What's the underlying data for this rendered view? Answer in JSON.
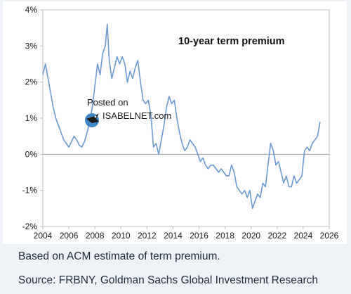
{
  "chart_data": {
    "type": "line",
    "title": "10-year term premium",
    "xlabel": "",
    "ylabel": "",
    "xlim": [
      2004,
      2026
    ],
    "ylim": [
      -2,
      4
    ],
    "x_ticks": [
      "2004",
      "2006",
      "2008",
      "2010",
      "2012",
      "2014",
      "2016",
      "2018",
      "2020",
      "2022",
      "2024",
      "2026"
    ],
    "y_ticks": [
      "-2%",
      "-1%",
      "0%",
      "1%",
      "2%",
      "3%",
      "4%"
    ],
    "grid": false,
    "legend": "none",
    "line_color": "#6c9bd2",
    "zero_line_color": "#9a9a9a",
    "series": [
      {
        "x": [
          2004.0,
          2004.2,
          2004.4,
          2004.6,
          2004.8,
          2005.0,
          2005.2,
          2005.4,
          2005.6,
          2005.8,
          2006.0,
          2006.2,
          2006.4,
          2006.6,
          2006.8,
          2007.0,
          2007.2,
          2007.4,
          2007.6,
          2007.8,
          2008.0,
          2008.2,
          2008.4,
          2008.6,
          2008.8,
          2008.95,
          2009.1,
          2009.3,
          2009.5,
          2009.7,
          2009.9,
          2010.1,
          2010.3,
          2010.5,
          2010.7,
          2010.9,
          2011.1,
          2011.3,
          2011.5,
          2011.7,
          2011.9,
          2012.1,
          2012.3,
          2012.5,
          2012.7,
          2012.9,
          2013.1,
          2013.3,
          2013.5,
          2013.7,
          2013.9,
          2014.1,
          2014.3,
          2014.5,
          2014.7,
          2014.9,
          2015.1,
          2015.3,
          2015.5,
          2015.7,
          2015.9,
          2016.1,
          2016.3,
          2016.5,
          2016.7,
          2016.9,
          2017.1,
          2017.3,
          2017.5,
          2017.7,
          2017.9,
          2018.1,
          2018.3,
          2018.5,
          2018.7,
          2018.9,
          2019.1,
          2019.3,
          2019.5,
          2019.7,
          2019.9,
          2020.1,
          2020.3,
          2020.5,
          2020.7,
          2020.9,
          2021.1,
          2021.3,
          2021.5,
          2021.7,
          2021.9,
          2022.1,
          2022.3,
          2022.5,
          2022.7,
          2022.9,
          2023.1,
          2023.3,
          2023.5,
          2023.7,
          2023.9,
          2024.1,
          2024.3,
          2024.5,
          2024.7,
          2024.9,
          2025.1,
          2025.3
        ],
        "y": [
          2.2,
          2.5,
          2.1,
          1.7,
          1.3,
          1.0,
          0.8,
          0.6,
          0.4,
          0.3,
          0.2,
          0.35,
          0.5,
          0.4,
          0.25,
          0.2,
          0.35,
          0.6,
          0.9,
          1.3,
          1.9,
          2.5,
          2.2,
          2.8,
          3.0,
          3.6,
          2.6,
          2.1,
          2.4,
          2.7,
          2.5,
          2.7,
          2.5,
          2.0,
          2.3,
          2.1,
          2.4,
          2.6,
          2.0,
          1.5,
          1.4,
          1.5,
          1.1,
          0.2,
          0.3,
          0.0,
          0.4,
          0.8,
          1.3,
          1.6,
          1.4,
          1.5,
          1.0,
          0.6,
          0.3,
          0.1,
          0.2,
          0.4,
          0.3,
          0.2,
          0.0,
          -0.2,
          -0.1,
          -0.3,
          -0.4,
          -0.3,
          -0.3,
          -0.4,
          -0.5,
          -0.4,
          -0.5,
          -0.6,
          -0.6,
          -0.3,
          -0.5,
          -0.9,
          -1.0,
          -1.1,
          -1.0,
          -1.2,
          -1.0,
          -1.5,
          -1.3,
          -1.1,
          -1.2,
          -0.8,
          -0.9,
          -0.3,
          0.3,
          0.1,
          -0.3,
          -0.2,
          -0.5,
          -0.8,
          -0.6,
          -0.9,
          -0.9,
          -0.6,
          -0.8,
          -0.7,
          -0.6,
          0.1,
          0.2,
          0.1,
          0.3,
          0.4,
          0.5,
          0.9
        ]
      }
    ]
  },
  "watermark": {
    "line1": "Posted on",
    "line2": "ISABELNET.com",
    "icon": "bird-logo-icon"
  },
  "footnote": {
    "note": "Based on ACM estimate of term premium.",
    "source": "Source: FRBNY, Goldman Sachs Global Investment Research"
  }
}
